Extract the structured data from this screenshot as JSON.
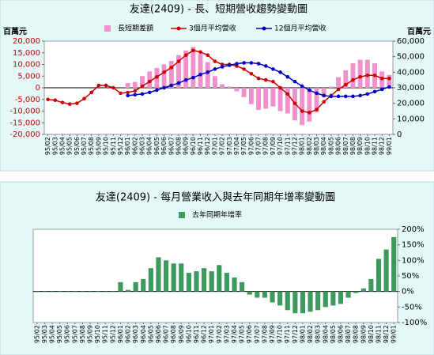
{
  "chart_data": [
    {
      "type": "combo",
      "title": "友達(2409) - 長、短期營收趨勢變動圖",
      "ylabel": "百萬元",
      "y2label": "百萬元",
      "categories": [
        "95/02",
        "95/03",
        "95/04",
        "95/05",
        "95/06",
        "95/07",
        "95/08",
        "95/09",
        "95/10",
        "95/11",
        "95/12",
        "96/01",
        "96/02",
        "96/03",
        "96/04",
        "96/05",
        "96/06",
        "96/07",
        "96/08",
        "96/09",
        "96/10",
        "96/11",
        "96/12",
        "97/01",
        "97/02",
        "97/03",
        "97/04",
        "97/05",
        "97/06",
        "97/07",
        "97/08",
        "97/09",
        "97/10",
        "97/11",
        "97/12",
        "98/01",
        "98/02",
        "98/03",
        "98/04",
        "98/05",
        "98/06",
        "98/07",
        "98/08",
        "98/09",
        "98/10",
        "98/11",
        "98/12",
        "99/01"
      ],
      "ylim": [
        -20000,
        20000
      ],
      "yticks": [
        {
          "value": -20000,
          "label": "-20,000"
        },
        {
          "value": -15000,
          "label": "-15,000"
        },
        {
          "value": -10000,
          "label": "-10,000"
        },
        {
          "value": -5000,
          "label": "-5,000"
        },
        0,
        {
          "value": 5000,
          "label": "5,000"
        },
        {
          "value": 10000,
          "label": "10,000"
        },
        {
          "value": 15000,
          "label": "15,000"
        },
        {
          "value": 20000,
          "label": "20,000"
        }
      ],
      "ytick_color": "#cc0000",
      "y2lim": [
        0,
        60000
      ],
      "y2ticks": [
        0,
        {
          "value": 10000,
          "label": "10,000"
        },
        {
          "value": 20000,
          "label": "20,000"
        },
        {
          "value": 30000,
          "label": "30,000"
        },
        {
          "value": 40000,
          "label": "40,000"
        },
        {
          "value": 50000,
          "label": "50,000"
        },
        {
          "value": 60000,
          "label": "60,000"
        }
      ],
      "series": [
        {
          "name": "長短期差額",
          "type": "bar",
          "color": "#f090cc",
          "axis": "y",
          "values": [
            null,
            null,
            null,
            null,
            null,
            null,
            null,
            null,
            null,
            null,
            null,
            2000,
            2500,
            5000,
            7000,
            8500,
            10000,
            11500,
            14000,
            16000,
            17500,
            14500,
            11000,
            5000,
            1500,
            500,
            -1500,
            -4000,
            -7000,
            -9500,
            -9000,
            -8000,
            -10000,
            -11000,
            -14000,
            -16000,
            -14500,
            -10500,
            -4000,
            500,
            4500,
            7500,
            10500,
            12000,
            12000,
            10500,
            7000,
            5500
          ]
        },
        {
          "name": "3個月平均營收",
          "type": "line",
          "color": "#cc0000",
          "axis": "y2",
          "values": [
            22500,
            22000,
            20500,
            19500,
            20000,
            23000,
            27000,
            31500,
            31500,
            30000,
            26500,
            27000,
            28000,
            31000,
            34000,
            37000,
            40000,
            43000,
            47000,
            51000,
            54000,
            53000,
            51000,
            47000,
            45000,
            45000,
            44000,
            42000,
            39000,
            36000,
            35000,
            34000,
            30000,
            26000,
            20000,
            15000,
            14000,
            16000,
            21000,
            25000,
            29000,
            32000,
            35000,
            37000,
            38000,
            38000,
            36000,
            36000
          ]
        },
        {
          "name": "12個月平均營收",
          "type": "line",
          "color": "#0000cc",
          "axis": "y2",
          "values": [
            null,
            null,
            null,
            null,
            null,
            null,
            null,
            null,
            null,
            null,
            null,
            25000,
            25500,
            26000,
            27000,
            28500,
            30000,
            31500,
            33000,
            35000,
            36500,
            38500,
            40000,
            42000,
            43500,
            44500,
            45500,
            46000,
            46000,
            45500,
            44000,
            42000,
            40000,
            37000,
            34000,
            31000,
            28500,
            26500,
            25000,
            24500,
            24500,
            24500,
            24500,
            25000,
            26000,
            27500,
            29000,
            30500
          ]
        }
      ]
    },
    {
      "type": "bar",
      "title": "友達(2409) - 每月營業收入與去年同期年增率變動圖",
      "categories": [
        "95/02",
        "95/03",
        "95/04",
        "95/05",
        "95/06",
        "95/07",
        "95/08",
        "95/09",
        "95/10",
        "95/11",
        "95/12",
        "96/01",
        "96/02",
        "96/03",
        "96/04",
        "96/05",
        "96/06",
        "96/07",
        "96/08",
        "96/09",
        "96/10",
        "96/11",
        "96/12",
        "97/01",
        "97/02",
        "97/03",
        "97/04",
        "97/05",
        "97/06",
        "97/07",
        "97/08",
        "97/09",
        "97/10",
        "97/11",
        "97/12",
        "98/01",
        "98/02",
        "98/03",
        "98/04",
        "98/05",
        "98/06",
        "98/07",
        "98/08",
        "98/09",
        "98/10",
        "98/11",
        "98/12",
        "99/01"
      ],
      "y2lim": [
        -100,
        200
      ],
      "y2ticks": [
        {
          "value": -100,
          "label": "-100%"
        },
        {
          "value": -50,
          "label": "-50%"
        },
        {
          "value": 0,
          "label": "0%"
        },
        {
          "value": 50,
          "label": "50%"
        },
        {
          "value": 100,
          "label": "100%"
        },
        {
          "value": 150,
          "label": "150%"
        },
        {
          "value": 200,
          "label": "200%"
        }
      ],
      "series": [
        {
          "name": "去年同期年增率",
          "type": "bar",
          "color": "#3c9a5c",
          "axis": "y2",
          "values": [
            0,
            0,
            0,
            0,
            0,
            0,
            0,
            0,
            0,
            0,
            0,
            30,
            5,
            30,
            40,
            75,
            110,
            100,
            90,
            90,
            60,
            65,
            75,
            65,
            85,
            60,
            45,
            30,
            -10,
            -20,
            -20,
            -35,
            -45,
            -60,
            -70,
            -70,
            -65,
            -60,
            -50,
            -45,
            -40,
            -20,
            -5,
            10,
            40,
            105,
            135,
            175
          ]
        }
      ]
    }
  ]
}
